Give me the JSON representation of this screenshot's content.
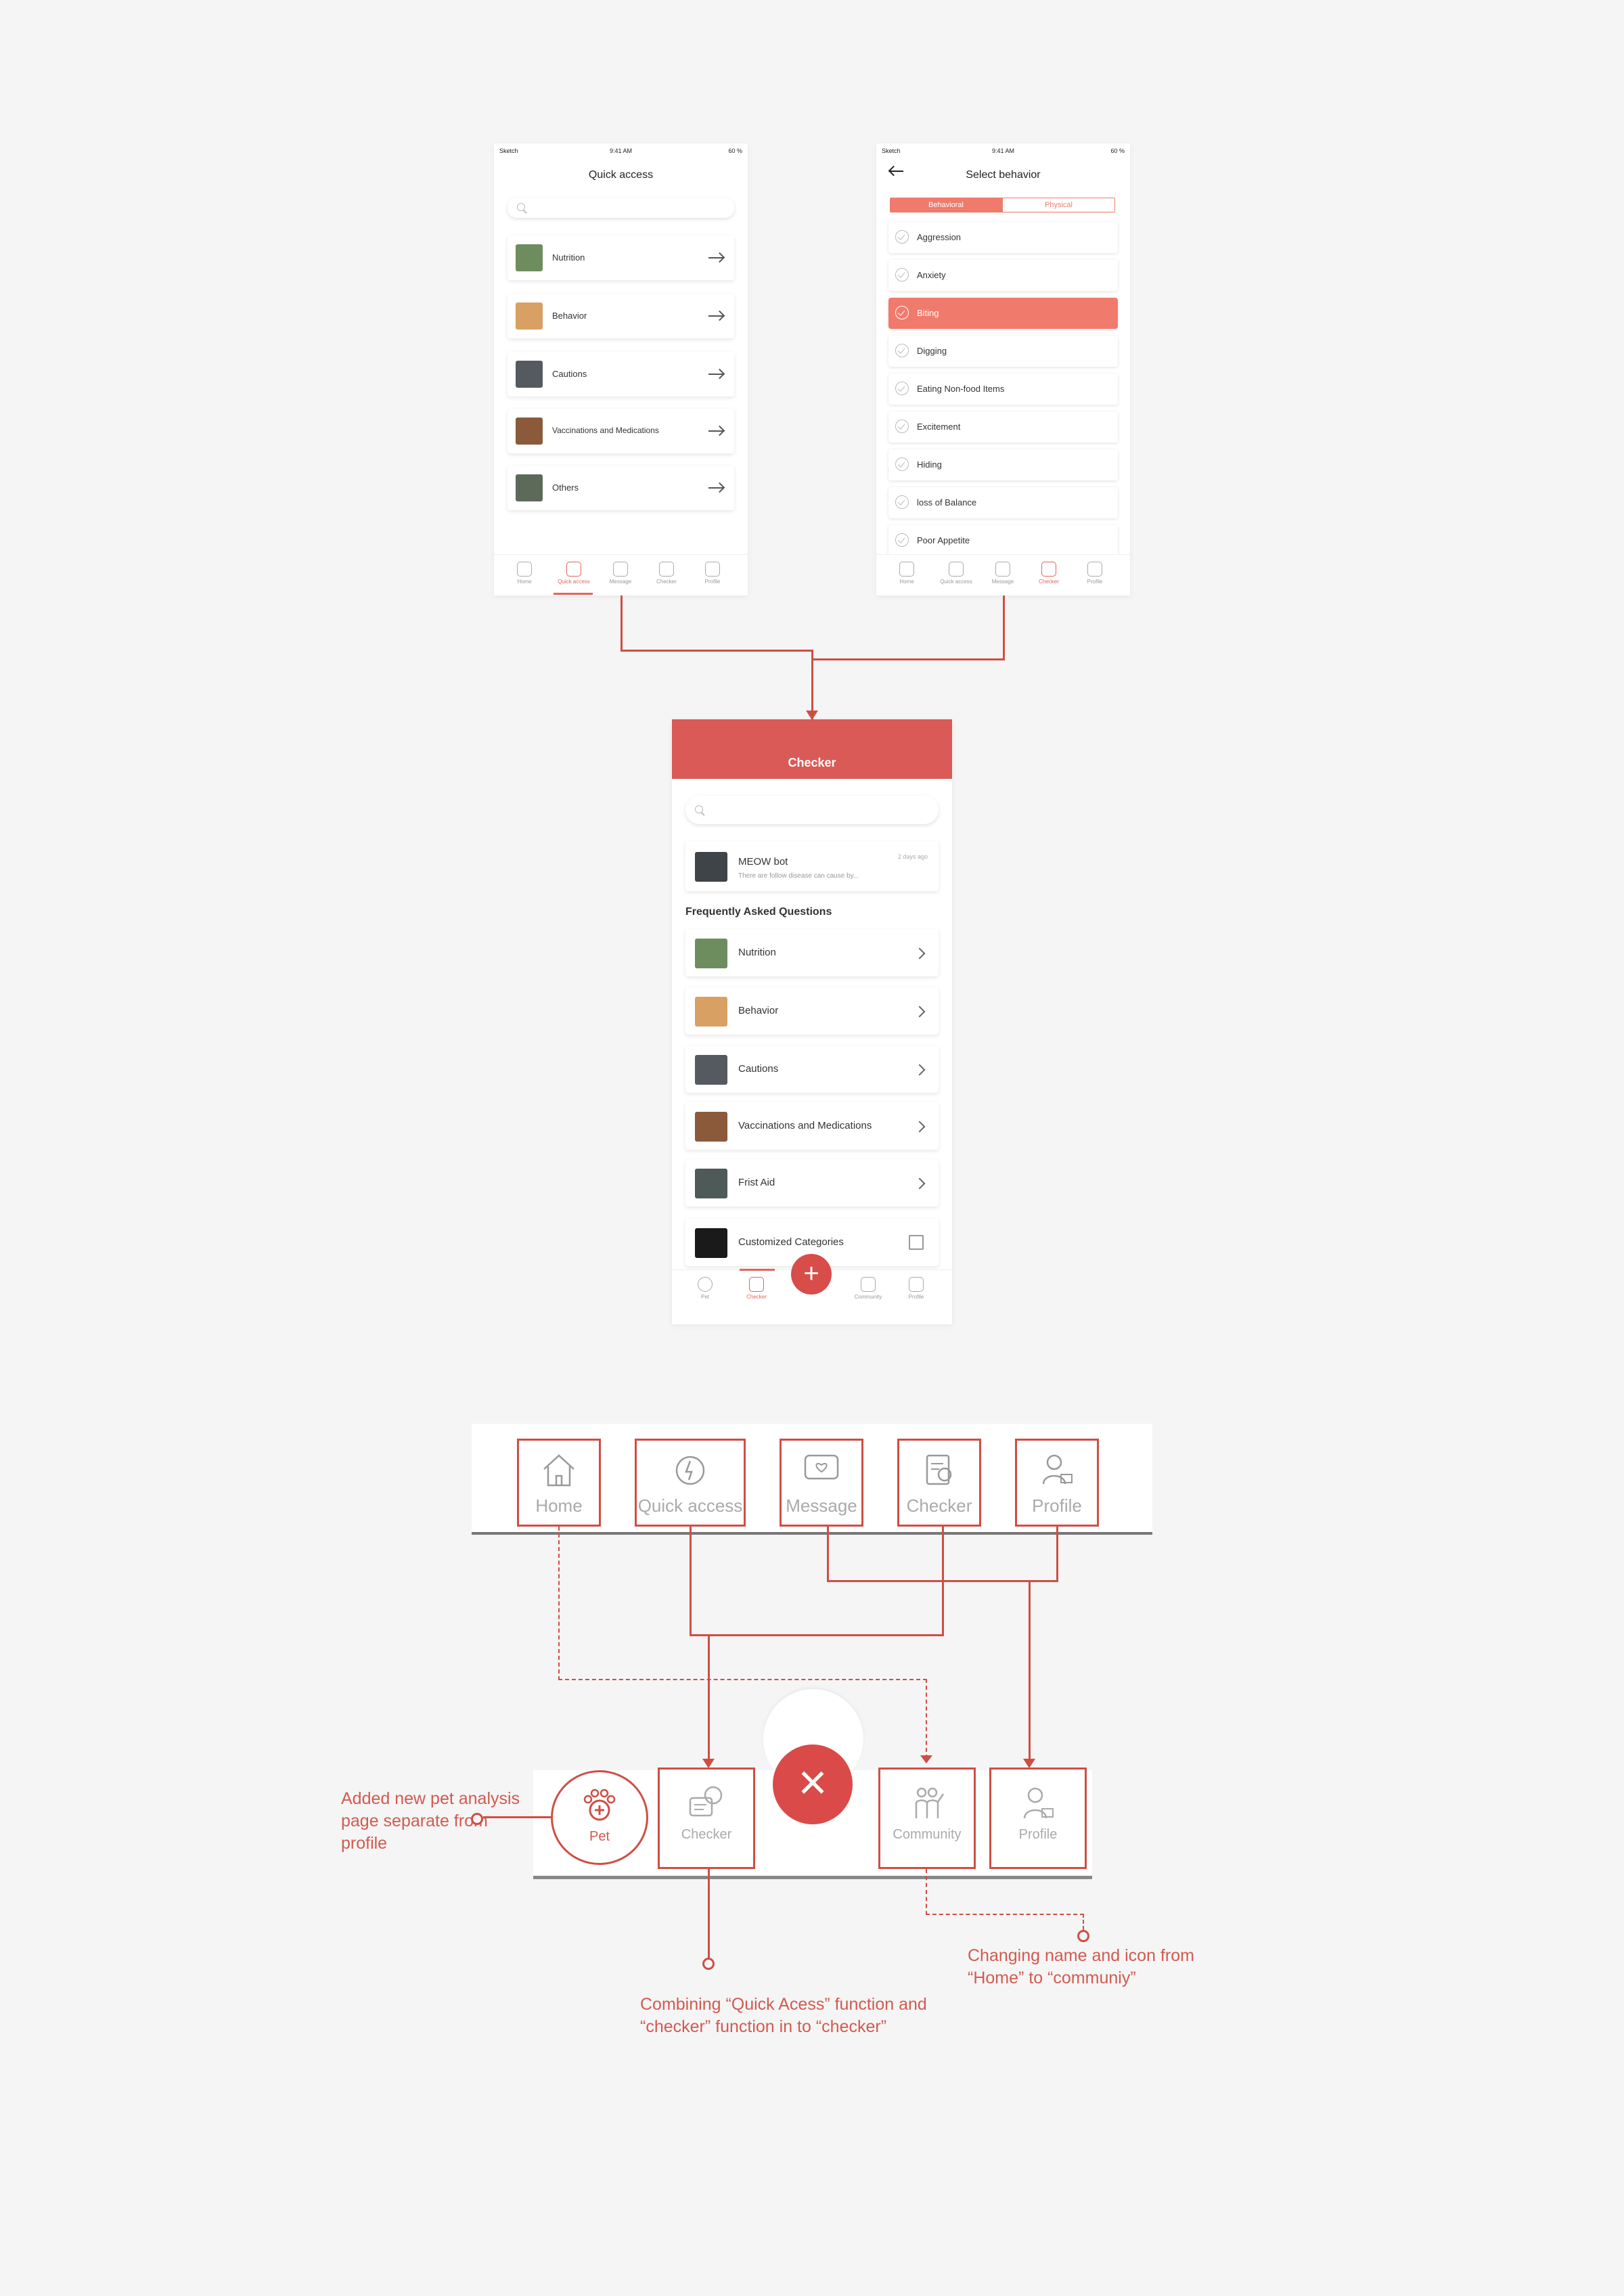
{
  "screen1": {
    "status": {
      "carrier": "Sketch",
      "time": "9:41 AM",
      "battery": "60 %"
    },
    "title": "Quick access",
    "items": [
      {
        "label": "Nutrition",
        "thumb_color": "#6d8d5e"
      },
      {
        "label": "Behavior",
        "thumb_color": "#d9a064"
      },
      {
        "label": "Cautions",
        "thumb_color": "#555a60"
      },
      {
        "label": "Vaccinations and Medications",
        "thumb_color": "#8a5a3a"
      },
      {
        "label": "Others",
        "thumb_color": "#5d6a5a"
      }
    ],
    "tabs": [
      "Home",
      "Quick access",
      "Message",
      "Checker",
      "Profile"
    ],
    "active_tab": "Quick access"
  },
  "screen2": {
    "status": {
      "carrier": "Sketch",
      "time": "9:41 AM",
      "battery": "60 %"
    },
    "title": "Select behavior",
    "segments": [
      "Behavioral",
      "Physical"
    ],
    "items": [
      "Aggression",
      "Anxiety",
      "Biting",
      "Digging",
      "Eating Non-food Items",
      "Excitement",
      "Hiding",
      "loss of Balance",
      "Poor Appetite"
    ],
    "selected": "Biting",
    "tabs": [
      "Home",
      "Quick access",
      "Message",
      "Checker",
      "Profile"
    ],
    "active_tab": "Checker"
  },
  "screen3": {
    "title": "Checker",
    "chat": {
      "name": "MEOW bot",
      "time": "2 days ago",
      "preview": "There are follow disease can cause by..."
    },
    "faq_heading": "Frequently Asked Questions",
    "items": [
      {
        "label": "Nutrition",
        "thumb_color": "#6d8d5e"
      },
      {
        "label": "Behavior",
        "thumb_color": "#d9a064"
      },
      {
        "label": "Cautions",
        "thumb_color": "#555a60"
      },
      {
        "label": "Vaccinations and Medications",
        "thumb_color": "#8a5a3a"
      },
      {
        "label": "Frist Aid",
        "thumb_color": "#4d5a58"
      }
    ],
    "custom": "Customized Categories",
    "tabs": [
      "Pet",
      "Checker",
      "Community",
      "Profile"
    ],
    "active_tab": "Checker",
    "fab": "+"
  },
  "old_nav": [
    "Home",
    "Quick access",
    "Message",
    "Checker",
    "Profile"
  ],
  "new_nav": {
    "pet": "Pet",
    "checker": "Checker",
    "community": "Community",
    "profile": "Profile",
    "fab": "×"
  },
  "annotations": {
    "pet_note": "Added new pet analysis page separate from profile",
    "combine_note": "Combining “Quick Acess” function and “checker” function in to “checker”",
    "community_note": "Changing name and icon from “Home” to “communiy”"
  },
  "colors": {
    "accent": "#e0665c",
    "header": "#d95a57",
    "line": "#cf4e44"
  }
}
